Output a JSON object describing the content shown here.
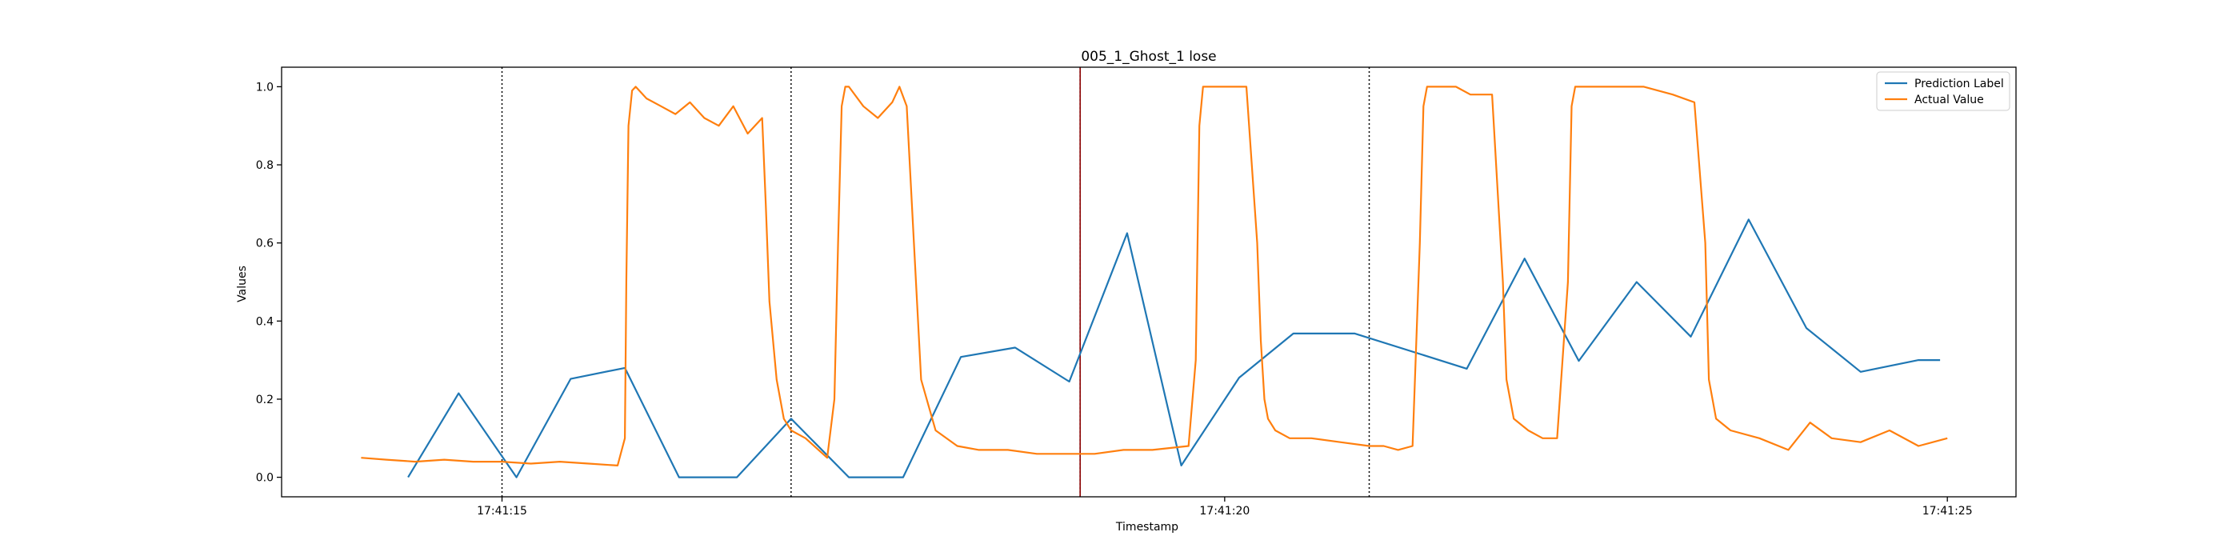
{
  "chart_data": {
    "type": "line",
    "title": "005_1_Ghost_1 lose",
    "xlabel": "Timestamp",
    "ylabel": "Values",
    "xlim": [
      -3.05,
      20.95
    ],
    "ylim": [
      -0.05,
      1.05
    ],
    "x_ticks": [
      {
        "value": 0,
        "label": "17:41:15"
      },
      {
        "value": 10,
        "label": "17:41:20"
      },
      {
        "value": 20,
        "label": "17:41:25"
      }
    ],
    "y_ticks": [
      {
        "value": 0.0,
        "label": "0.0"
      },
      {
        "value": 0.2,
        "label": "0.2"
      },
      {
        "value": 0.4,
        "label": "0.4"
      },
      {
        "value": 0.6,
        "label": "0.6"
      },
      {
        "value": 0.8,
        "label": "0.8"
      },
      {
        "value": 1.0,
        "label": "1.0"
      }
    ],
    "grid": false,
    "legend_position": "upper right",
    "vlines": [
      {
        "x": 0,
        "style": "dotted",
        "color": "#000000"
      },
      {
        "x": 4,
        "style": "dotted",
        "color": "#000000"
      },
      {
        "x": 8,
        "style": "dotted",
        "color": "#000000"
      },
      {
        "x": 8,
        "style": "solid",
        "color": "#8b0000"
      },
      {
        "x": 12,
        "style": "dotted",
        "color": "#000000"
      }
    ],
    "series": [
      {
        "name": "Prediction Label",
        "color": "#1f77b4",
        "x": [
          -1.3,
          -0.6,
          0.2,
          0.95,
          1.7,
          2.45,
          3.25,
          4.0,
          4.8,
          5.55,
          6.35,
          7.1,
          7.85,
          8.65,
          9.4,
          10.2,
          10.95,
          11.8,
          13.35,
          14.15,
          14.9,
          15.7,
          16.45,
          17.25,
          18.05,
          18.8,
          19.6,
          19.9
        ],
        "values": [
          0.0,
          0.215,
          0.0,
          0.252,
          0.28,
          0.0,
          0.0,
          0.15,
          0.0,
          0.0,
          0.308,
          0.332,
          0.245,
          0.625,
          0.03,
          0.255,
          0.368,
          0.368,
          0.278,
          0.56,
          0.298,
          0.5,
          0.36,
          0.66,
          0.382,
          0.27,
          0.3,
          0.3
        ]
      },
      {
        "name": "Actual Value",
        "color": "#ff7f0e",
        "x": [
          -1.95,
          -1.6,
          -1.2,
          -0.8,
          -0.4,
          0.0,
          0.4,
          0.8,
          1.2,
          1.6,
          1.7,
          1.72,
          1.75,
          1.8,
          1.85,
          2.0,
          2.2,
          2.4,
          2.6,
          2.8,
          3.0,
          3.2,
          3.4,
          3.6,
          3.65,
          3.7,
          3.8,
          3.9,
          4.0,
          4.2,
          4.5,
          4.6,
          4.65,
          4.7,
          4.75,
          4.8,
          5.0,
          5.2,
          5.4,
          5.5,
          5.6,
          5.7,
          5.8,
          6.0,
          6.3,
          6.6,
          7.0,
          7.4,
          7.8,
          8.2,
          8.6,
          9.0,
          9.5,
          9.6,
          9.65,
          9.7,
          9.8,
          10.0,
          10.3,
          10.45,
          10.5,
          10.55,
          10.6,
          10.7,
          10.9,
          11.2,
          11.6,
          12.0,
          12.2,
          12.4,
          12.6,
          12.7,
          12.75,
          12.8,
          12.85,
          13.0,
          13.2,
          13.4,
          13.7,
          13.85,
          13.9,
          14.0,
          14.2,
          14.4,
          14.6,
          14.75,
          14.8,
          14.85,
          15.0,
          15.4,
          15.8,
          16.2,
          16.5,
          16.65,
          16.7,
          16.8,
          17.0,
          17.4,
          17.8,
          18.1,
          18.4,
          18.8,
          19.2,
          19.6,
          20.0
        ],
        "values": [
          0.05,
          0.045,
          0.04,
          0.045,
          0.04,
          0.04,
          0.035,
          0.04,
          0.035,
          0.03,
          0.1,
          0.5,
          0.9,
          0.99,
          1.0,
          0.97,
          0.95,
          0.93,
          0.96,
          0.92,
          0.9,
          0.95,
          0.88,
          0.92,
          0.7,
          0.45,
          0.25,
          0.15,
          0.12,
          0.1,
          0.05,
          0.2,
          0.6,
          0.95,
          1.0,
          1.0,
          0.95,
          0.92,
          0.96,
          1.0,
          0.95,
          0.6,
          0.25,
          0.12,
          0.08,
          0.07,
          0.07,
          0.06,
          0.06,
          0.06,
          0.07,
          0.07,
          0.08,
          0.3,
          0.9,
          1.0,
          1.0,
          1.0,
          1.0,
          0.6,
          0.35,
          0.2,
          0.15,
          0.12,
          0.1,
          0.1,
          0.09,
          0.08,
          0.08,
          0.07,
          0.08,
          0.6,
          0.95,
          1.0,
          1.0,
          1.0,
          1.0,
          0.98,
          0.98,
          0.5,
          0.25,
          0.15,
          0.12,
          0.1,
          0.1,
          0.5,
          0.95,
          1.0,
          1.0,
          1.0,
          1.0,
          0.98,
          0.96,
          0.6,
          0.25,
          0.15,
          0.12,
          0.1,
          0.07,
          0.14,
          0.1,
          0.09,
          0.12,
          0.08,
          0.1
        ]
      }
    ]
  }
}
